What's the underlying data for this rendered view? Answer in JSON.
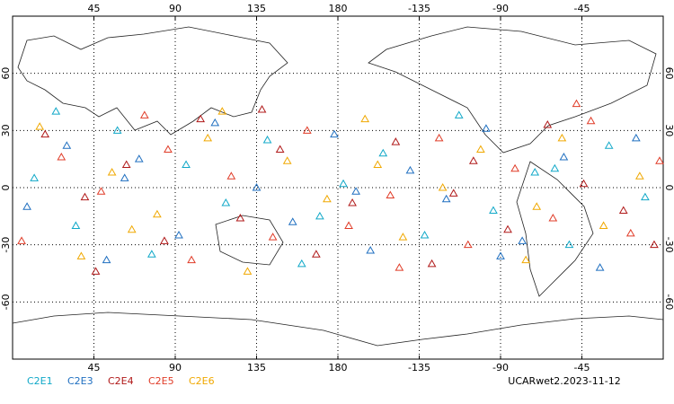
{
  "chart_data": {
    "type": "scatter",
    "xlim": [
      0,
      360
    ],
    "ylim": [
      -90,
      90
    ],
    "xticks": [
      45,
      90,
      135,
      180,
      {
        "value": 225,
        "label": "-135"
      },
      {
        "value": 270,
        "label": "-90"
      },
      {
        "value": 315,
        "label": "-45"
      }
    ],
    "yticks": [
      -60,
      -30,
      0,
      30,
      60
    ],
    "grid": true,
    "series": [
      {
        "name": "C2E1",
        "color": "#10a8c8",
        "x": [
          12,
          35,
          58,
          77,
          96,
          118,
          141,
          160,
          183,
          205,
          228,
          247,
          266,
          289,
          308,
          330,
          350,
          24,
          170,
          300
        ],
        "y": [
          5,
          -20,
          30,
          -35,
          12,
          -8,
          25,
          -40,
          2,
          18,
          -25,
          38,
          -12,
          8,
          -30,
          22,
          -5,
          40,
          -15,
          10
        ]
      },
      {
        "name": "C2E3",
        "color": "#1f6fc0",
        "x": [
          8,
          30,
          52,
          70,
          92,
          112,
          135,
          155,
          178,
          198,
          220,
          240,
          262,
          282,
          305,
          325,
          345,
          62,
          190,
          270
        ],
        "y": [
          -10,
          22,
          -38,
          15,
          -25,
          34,
          0,
          -18,
          28,
          -33,
          9,
          -6,
          31,
          -28,
          16,
          -42,
          26,
          5,
          -2,
          -36
        ]
      },
      {
        "name": "C2E4",
        "color": "#b01818",
        "x": [
          18,
          40,
          63,
          84,
          104,
          126,
          148,
          168,
          188,
          212,
          232,
          255,
          274,
          296,
          316,
          338,
          355,
          46,
          138,
          244
        ],
        "y": [
          28,
          -5,
          12,
          -28,
          36,
          -16,
          20,
          -35,
          -8,
          24,
          -40,
          14,
          -22,
          33,
          2,
          -12,
          -30,
          -44,
          41,
          -3
        ]
      },
      {
        "name": "C2E5",
        "color": "#e03c28",
        "x": [
          5,
          27,
          49,
          73,
          99,
          121,
          144,
          163,
          186,
          209,
          236,
          252,
          278,
          299,
          320,
          342,
          358,
          86,
          214,
          312
        ],
        "y": [
          -28,
          16,
          -2,
          38,
          -38,
          6,
          -26,
          30,
          -20,
          -4,
          26,
          -30,
          10,
          -16,
          35,
          -24,
          14,
          20,
          -42,
          44
        ]
      },
      {
        "name": "C2E6",
        "color": "#f0a800",
        "x": [
          15,
          38,
          55,
          80,
          108,
          130,
          152,
          174,
          195,
          216,
          238,
          259,
          284,
          304,
          327,
          347,
          66,
          116,
          202,
          290
        ],
        "y": [
          32,
          -36,
          8,
          -14,
          26,
          -44,
          14,
          -6,
          36,
          -26,
          0,
          20,
          -38,
          26,
          -20,
          6,
          -22,
          40,
          12,
          -10
        ]
      }
    ],
    "annotation": "UCARwet2.2023-11-12"
  }
}
